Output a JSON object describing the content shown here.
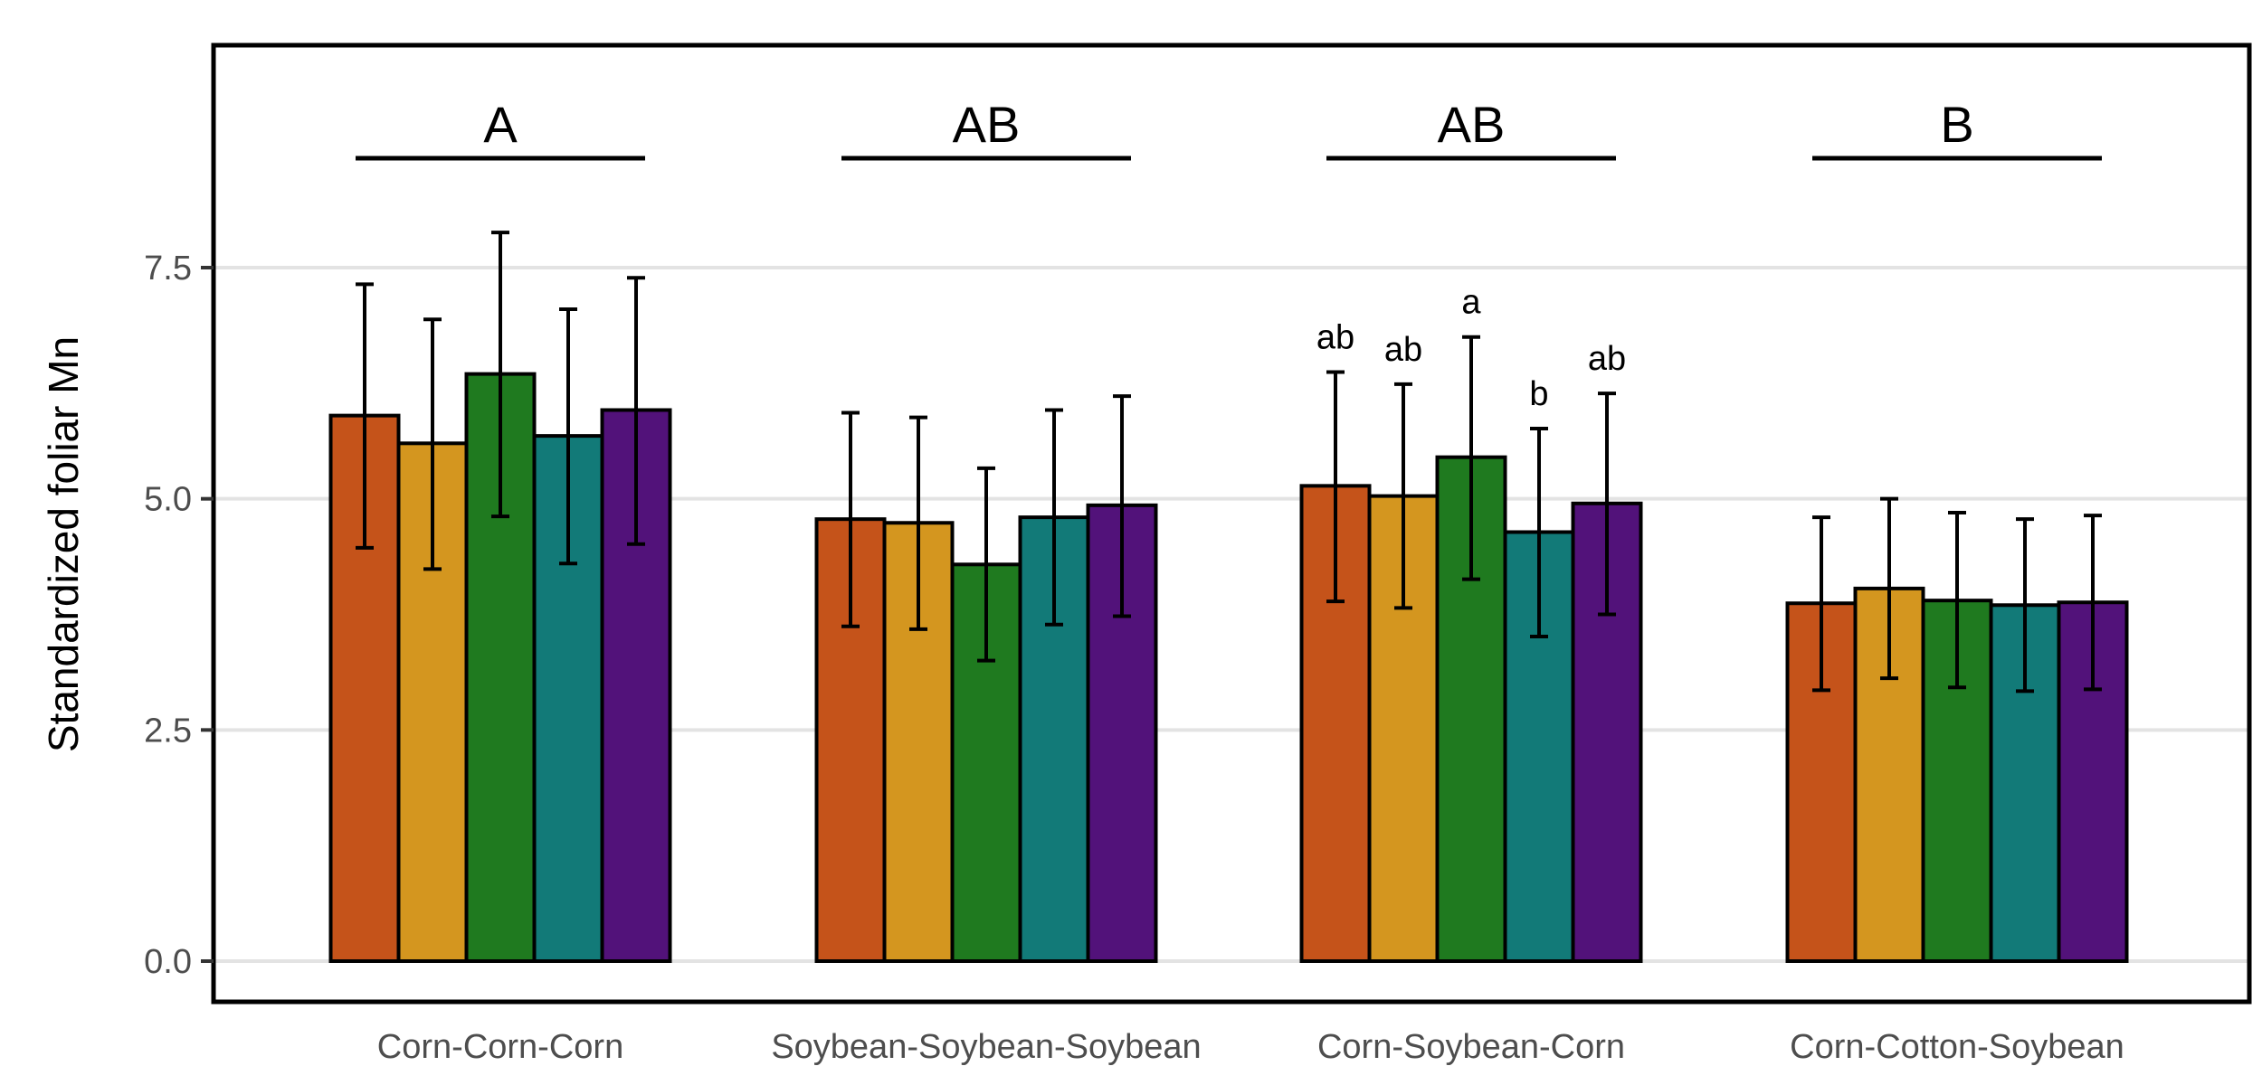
{
  "chart_data": {
    "type": "bar",
    "title": "",
    "xlabel": "",
    "ylabel": "Standardized foliar Mn",
    "ylim": [
      0,
      10
    ],
    "yticks": [
      "0.0",
      "2.5",
      "5.0",
      "7.5"
    ],
    "ytick_values": [
      0,
      2.5,
      5.0,
      7.5
    ],
    "grid": "horizontal",
    "legend": "none",
    "categories": [
      "Corn-Corn-Corn",
      "Soybean-Soybean-Soybean",
      "Corn-Soybean-Corn",
      "Corn-Cotton-Soybean"
    ],
    "group_letters": [
      "A",
      "AB",
      "AB",
      "B"
    ],
    "series_colors": [
      "#c5531a",
      "#d4961f",
      "#1f7a1f",
      "#127a78",
      "#52127a"
    ],
    "series": [
      {
        "values": [
          5.9,
          4.78,
          5.14,
          3.87
        ],
        "err_low": [
          4.47,
          3.62,
          3.89,
          2.93
        ],
        "err_high": [
          7.32,
          5.93,
          6.37,
          4.8
        ],
        "labels": [
          "",
          "",
          "ab",
          ""
        ]
      },
      {
        "values": [
          5.6,
          4.74,
          5.03,
          4.03
        ],
        "err_low": [
          4.24,
          3.59,
          3.82,
          3.06
        ],
        "err_high": [
          6.94,
          5.88,
          6.24,
          5.0
        ],
        "labels": [
          "",
          "",
          "ab",
          ""
        ]
      },
      {
        "values": [
          6.35,
          4.29,
          5.45,
          3.9
        ],
        "err_low": [
          4.81,
          3.25,
          4.13,
          2.96
        ],
        "err_high": [
          7.88,
          5.33,
          6.75,
          4.85
        ],
        "labels": [
          "",
          "",
          "a",
          ""
        ]
      },
      {
        "values": [
          5.68,
          4.8,
          4.64,
          3.85
        ],
        "err_low": [
          4.3,
          3.64,
          3.51,
          2.92
        ],
        "err_high": [
          7.05,
          5.96,
          5.76,
          4.78
        ],
        "labels": [
          "",
          "",
          "b",
          ""
        ]
      },
      {
        "values": [
          5.96,
          4.93,
          4.95,
          3.88
        ],
        "err_low": [
          4.51,
          3.73,
          3.75,
          2.94
        ],
        "err_high": [
          7.39,
          6.11,
          6.14,
          4.82
        ],
        "labels": [
          "",
          "",
          "ab",
          ""
        ]
      }
    ]
  }
}
